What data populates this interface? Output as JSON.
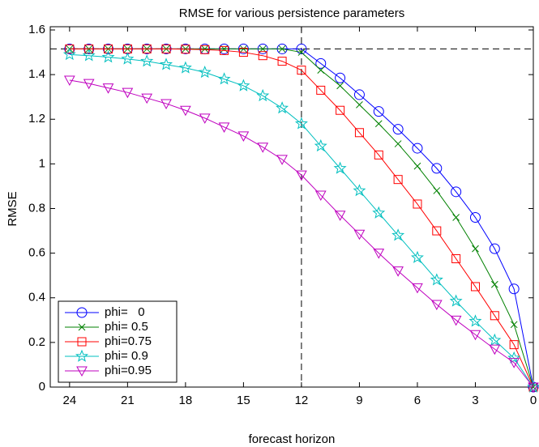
{
  "chart_data": {
    "type": "line",
    "title": "RMSE for various persistence parameters",
    "x_label": "forecast horizon",
    "y_label": "RMSE",
    "x": [
      24,
      23,
      22,
      21,
      20,
      19,
      18,
      17,
      16,
      15,
      14,
      13,
      12,
      11,
      10,
      9,
      8,
      7,
      6,
      5,
      4,
      3,
      2,
      1,
      0
    ],
    "xlim": [
      25,
      0
    ],
    "xticks": [
      24,
      21,
      18,
      15,
      12,
      9,
      6,
      3,
      0
    ],
    "ylim": [
      0,
      1.6
    ],
    "yticks": [
      0,
      0.2,
      0.4,
      0.6,
      0.8,
      1,
      1.2,
      1.4,
      1.6
    ],
    "reference_lines": {
      "x": 12,
      "y": 1.515
    },
    "legend": "lower left",
    "series": [
      {
        "name": "phi=   0",
        "color": "#0000ff",
        "marker": "circle",
        "values": [
          1.515,
          1.515,
          1.515,
          1.515,
          1.515,
          1.515,
          1.515,
          1.515,
          1.515,
          1.515,
          1.515,
          1.515,
          1.515,
          1.45,
          1.385,
          1.31,
          1.235,
          1.155,
          1.07,
          0.98,
          0.875,
          0.76,
          0.62,
          0.44,
          0
        ]
      },
      {
        "name": "phi= 0.5",
        "color": "#008000",
        "marker": "x",
        "values": [
          1.515,
          1.515,
          1.515,
          1.515,
          1.515,
          1.515,
          1.515,
          1.515,
          1.515,
          1.515,
          1.515,
          1.515,
          1.5,
          1.42,
          1.35,
          1.265,
          1.18,
          1.09,
          0.99,
          0.88,
          0.76,
          0.62,
          0.46,
          0.28,
          0
        ]
      },
      {
        "name": "phi=0.75",
        "color": "#ff0000",
        "marker": "square",
        "values": [
          1.515,
          1.515,
          1.515,
          1.515,
          1.515,
          1.515,
          1.514,
          1.512,
          1.508,
          1.5,
          1.485,
          1.46,
          1.42,
          1.33,
          1.24,
          1.14,
          1.04,
          0.93,
          0.82,
          0.7,
          0.575,
          0.45,
          0.32,
          0.19,
          0
        ]
      },
      {
        "name": "phi= 0.9",
        "color": "#00bfbf",
        "marker": "star",
        "values": [
          1.49,
          1.485,
          1.478,
          1.47,
          1.46,
          1.445,
          1.43,
          1.41,
          1.38,
          1.35,
          1.305,
          1.25,
          1.18,
          1.08,
          0.98,
          0.88,
          0.78,
          0.68,
          0.58,
          0.48,
          0.385,
          0.295,
          0.21,
          0.13,
          0
        ]
      },
      {
        "name": "phi=0.95",
        "color": "#bf00bf",
        "marker": "triangle-down",
        "values": [
          1.375,
          1.36,
          1.34,
          1.32,
          1.295,
          1.27,
          1.24,
          1.205,
          1.165,
          1.125,
          1.075,
          1.02,
          0.95,
          0.86,
          0.77,
          0.685,
          0.6,
          0.52,
          0.445,
          0.37,
          0.3,
          0.235,
          0.17,
          0.11,
          0
        ]
      }
    ]
  }
}
